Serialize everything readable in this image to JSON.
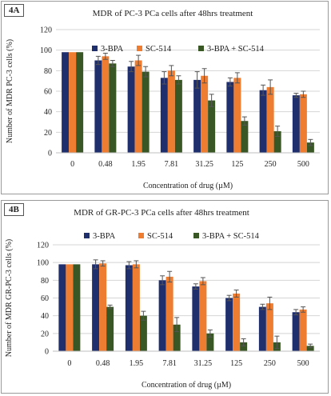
{
  "charts": [
    {
      "panel_label": "4A",
      "chart_data": {
        "type": "bar",
        "title": "MDR of PC-3  PCa cells  after 48hrs treatment",
        "xlabel": "Concentration of drug (µM)",
        "ylabel": "Number of MDR PC-3  cells (%)",
        "categories": [
          "0",
          "0.48",
          "1.95",
          "7.81",
          "31.25",
          "125",
          "250",
          "500"
        ],
        "ylim": [
          0,
          120
        ],
        "yticks": [
          0,
          20,
          40,
          60,
          80,
          100,
          120
        ],
        "grid": true,
        "legend": "top-right",
        "series": [
          {
            "name": "3-BPA",
            "color": "#1f2f6e",
            "values": [
              98,
              90,
              84,
              73,
              71,
              69,
              61,
              56
            ],
            "errors": [
              0,
              4,
              5,
              6,
              8,
              4,
              5,
              2
            ]
          },
          {
            "name": "SC-514",
            "color": "#ee7d31",
            "values": [
              98,
              94,
              90,
              80,
              75,
              73,
              64,
              57
            ],
            "errors": [
              0,
              3,
              5,
              5,
              7,
              5,
              7,
              3
            ]
          },
          {
            "name": "3-BPA + SC-514",
            "color": "#385724",
            "values": [
              98,
              87,
              79,
              71,
              51,
              31,
              21,
              10
            ],
            "errors": [
              0,
              3,
              5,
              4,
              6,
              4,
              5,
              3
            ]
          }
        ]
      }
    },
    {
      "panel_label": "4B",
      "chart_data": {
        "type": "bar",
        "title": "MDR of GR-PC-3  PCa cells after 48hrs treatment",
        "xlabel": "Concentration of drug (µM)",
        "ylabel": "Number of MDR GR-PC-3  cells (%)",
        "categories": [
          "0",
          "0.48",
          "1.95",
          "7.81",
          "31.25",
          "125",
          "250",
          "500"
        ],
        "ylim": [
          0,
          120
        ],
        "yticks": [
          0,
          20,
          40,
          60,
          80,
          100,
          120
        ],
        "grid": true,
        "legend": "top",
        "series": [
          {
            "name": "3-BPA",
            "color": "#1f2f6e",
            "values": [
              98,
              98,
              97,
              80,
              73,
              60,
              50,
              44
            ],
            "errors": [
              0,
              5,
              4,
              5,
              3,
              3,
              3,
              3
            ]
          },
          {
            "name": "SC-514",
            "color": "#ee7d31",
            "values": [
              98,
              99,
              98,
              84,
              79,
              65,
              54,
              47
            ],
            "errors": [
              0,
              3,
              4,
              6,
              4,
              4,
              7,
              3
            ]
          },
          {
            "name": "3-BPA + SC-514",
            "color": "#385724",
            "values": [
              98,
              50,
              40,
              30,
              20,
              10,
              10,
              6
            ],
            "errors": [
              0,
              2,
              5,
              8,
              4,
              4,
              7,
              2
            ]
          }
        ]
      }
    }
  ]
}
